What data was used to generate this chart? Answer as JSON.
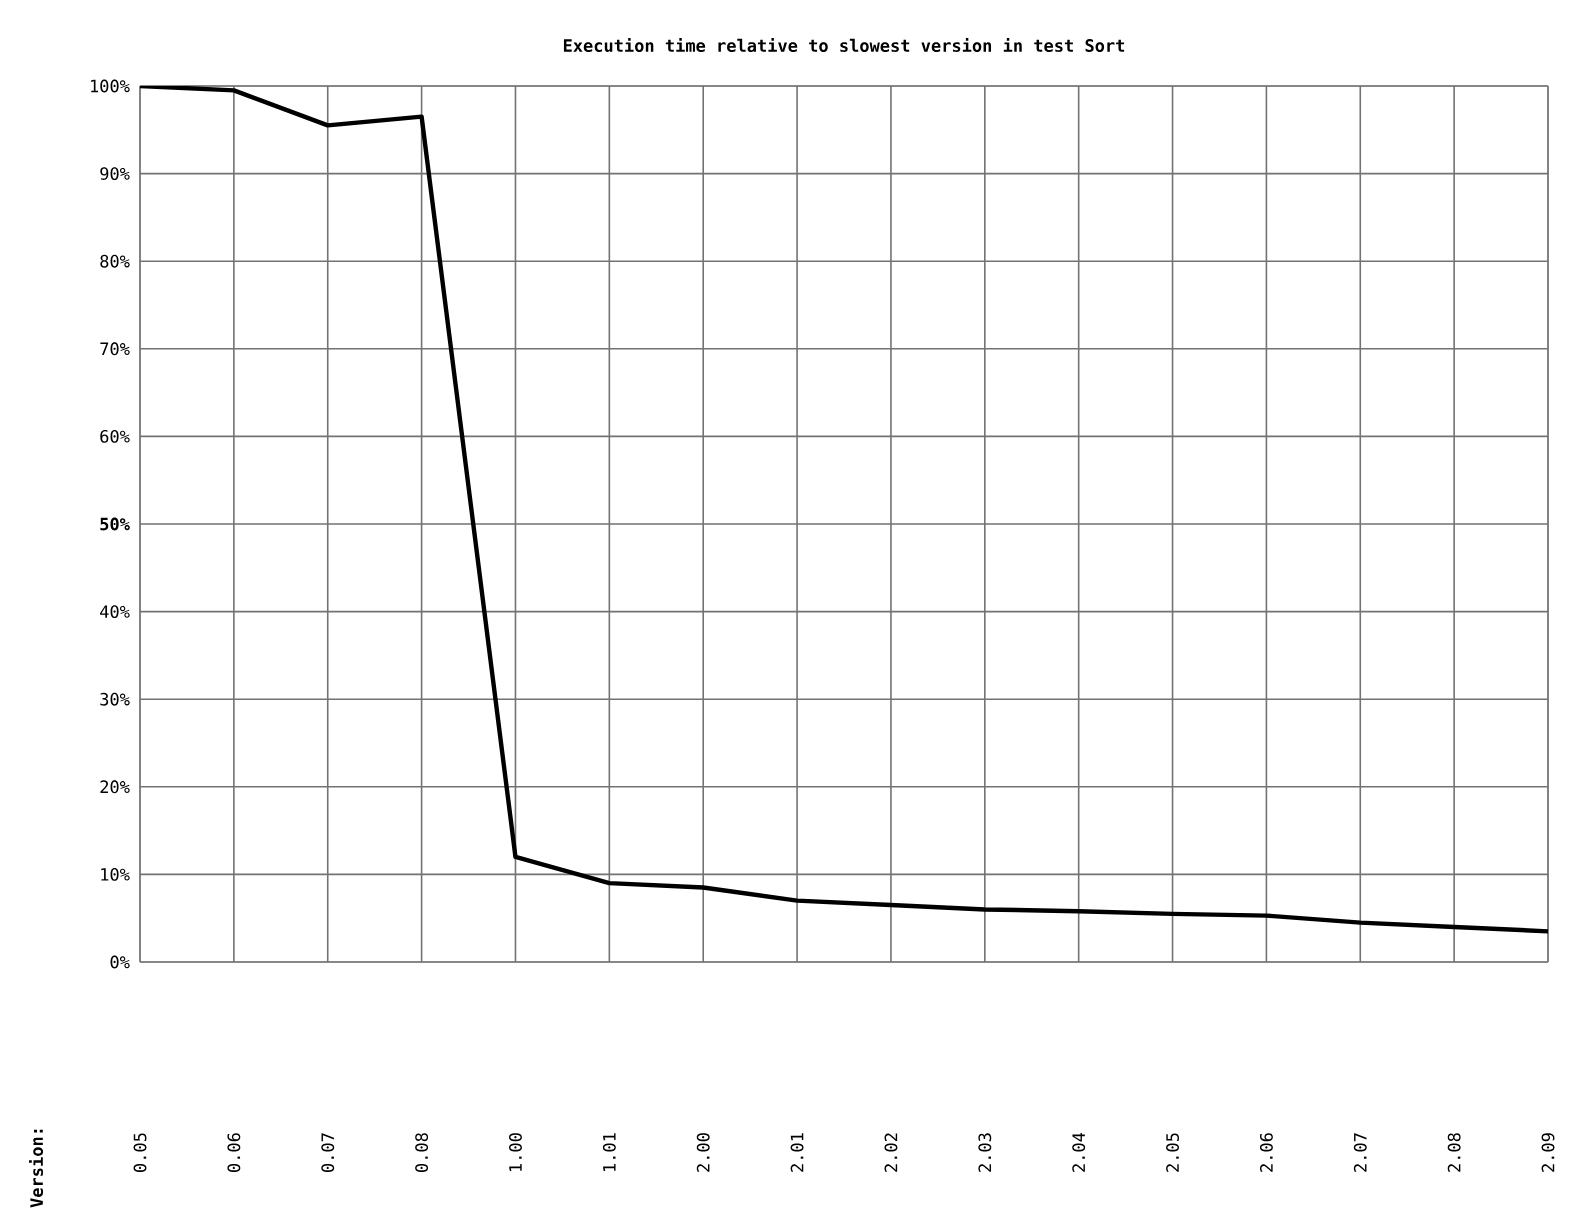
{
  "chart_data": {
    "type": "line",
    "title": "Execution time relative to slowest version in test Sort",
    "annotations": [
      "Version:"
    ],
    "categories": [
      "0.05",
      "0.06",
      "0.07",
      "0.08",
      "1.00",
      "1.01",
      "2.00",
      "2.01",
      "2.02",
      "2.03",
      "2.04",
      "2.05",
      "2.06",
      "2.07",
      "2.08",
      "2.09"
    ],
    "series": [
      {
        "color": "#000000",
        "values": [
          100,
          99.5,
          95.5,
          96.5,
          12,
          9,
          8.5,
          7,
          6.5,
          6,
          5.8,
          5.5,
          5.3,
          4.5,
          4,
          3.5
        ]
      }
    ],
    "ylim": [
      0,
      100
    ],
    "yticks": [
      {
        "value": 0,
        "label": "0%"
      },
      {
        "value": 10,
        "label": "10%"
      },
      {
        "value": 20,
        "label": "20%"
      },
      {
        "value": 30,
        "label": "30%"
      },
      {
        "value": 40,
        "label": "40%"
      },
      {
        "value": 50,
        "label": "**50%**"
      },
      {
        "value": 60,
        "label": "60%"
      },
      {
        "value": 70,
        "label": "70%"
      },
      {
        "value": 80,
        "label": "80%"
      },
      {
        "value": 90,
        "label": "90%"
      },
      {
        "value": 100,
        "label": "100%"
      }
    ],
    "grid": true,
    "marker": "none",
    "line_style": "solid"
  }
}
